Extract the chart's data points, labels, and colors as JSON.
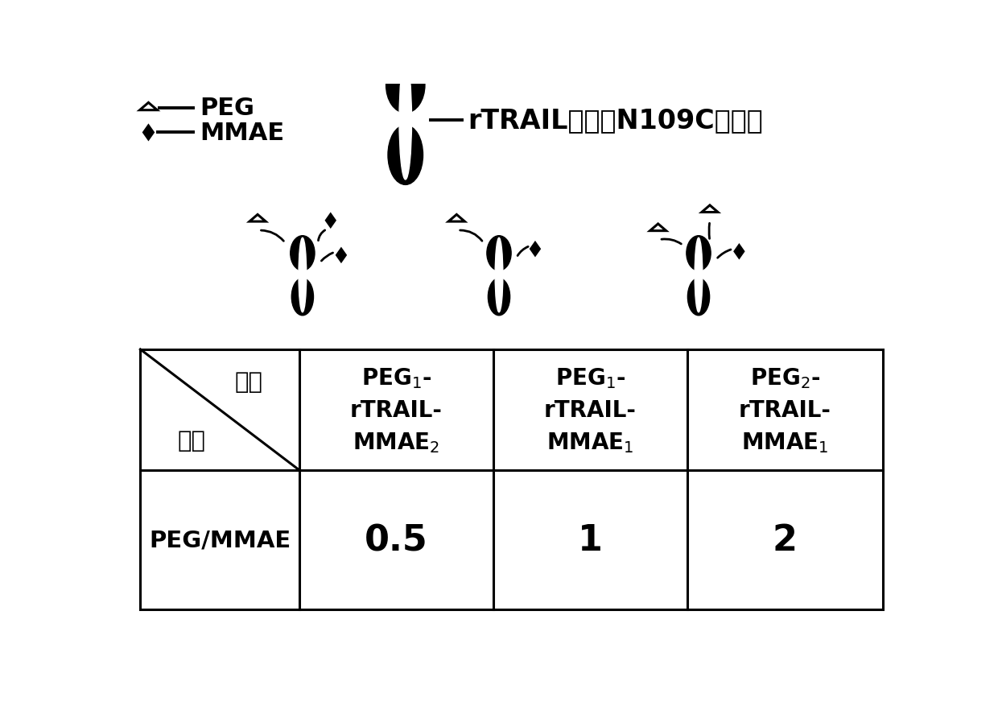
{
  "bg_color": "#ffffff",
  "trimer_label": "rTRAIL突变体N109C三聚体",
  "table_col_headers": [
    "PEG$_1$-\nrTRAIL-\nMMAE$_2$",
    "PEG$_1$-\nrTRAIL-\nMMAE$_1$",
    "PEG$_2$-\nrTRAIL-\nMMAE$_1$"
  ],
  "table_data_label": "PEG/MMAE",
  "table_values": [
    "0.5",
    "1",
    "2"
  ],
  "legend_peg": "PEG",
  "legend_mmae": "MMAE",
  "cell00_top": "名称",
  "cell00_bot": "比値"
}
